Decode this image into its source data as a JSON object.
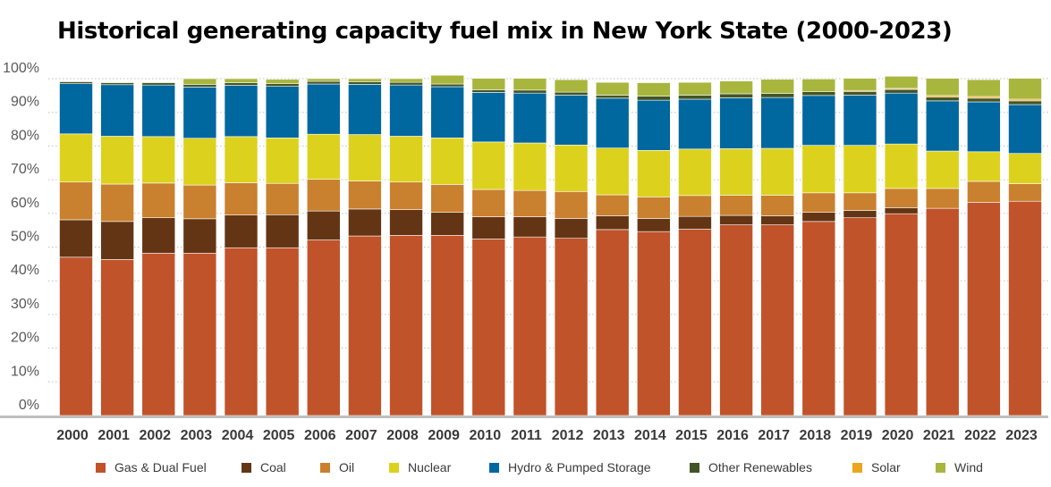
{
  "chart_data": {
    "type": "bar",
    "stacked": true,
    "title": "Historical generating capacity fuel mix in New York State (2000-2023)",
    "xlabel": "",
    "ylabel": "",
    "ylim": [
      0,
      100
    ],
    "y_tick_labels": [
      "0%",
      "10%",
      "20%",
      "30%",
      "40%",
      "50%",
      "60%",
      "70%",
      "80%",
      "90%",
      "100%"
    ],
    "grid": true,
    "legend_position": "bottom",
    "categories": [
      "2000",
      "2001",
      "2002",
      "2003",
      "2004",
      "2005",
      "2006",
      "2007",
      "2008",
      "2009",
      "2010",
      "2011",
      "2012",
      "2013",
      "2014",
      "2015",
      "2016",
      "2017",
      "2018",
      "2019",
      "2020",
      "2021",
      "2022",
      "2023"
    ],
    "series": [
      {
        "name": "Gas & Dual Fuel",
        "color": "#c0532a",
        "values": [
          47,
          46.3,
          48.2,
          48.2,
          49.8,
          49.8,
          52.1,
          53.3,
          53.5,
          53.5,
          52.4,
          53,
          52.6,
          55.2,
          54.6,
          55.3,
          56.6,
          56.6,
          57.6,
          58.7,
          59.9,
          61.5,
          63.3,
          63.6
        ]
      },
      {
        "name": "Coal",
        "color": "#643514",
        "values": [
          11.1,
          11.3,
          10.5,
          10.2,
          9.7,
          9.8,
          8.6,
          8,
          7.6,
          6.8,
          6.6,
          6,
          5.9,
          4.1,
          3.9,
          3.8,
          2.8,
          2.7,
          2.7,
          2.2,
          1.8,
          0,
          0,
          0
        ]
      },
      {
        "name": "Oil",
        "color": "#c9802f",
        "values": [
          11.2,
          11.1,
          10.3,
          10,
          9.6,
          9.3,
          9.4,
          8.3,
          8.2,
          8.3,
          8.1,
          7.8,
          8,
          6.2,
          6.4,
          6.2,
          6,
          6.1,
          5.8,
          5.2,
          5.7,
          5.9,
          6.2,
          5.2
        ]
      },
      {
        "name": "Nuclear",
        "color": "#dcd21e",
        "values": [
          14.3,
          14.2,
          13.8,
          13.9,
          13.7,
          13.5,
          13.4,
          13.8,
          13.6,
          13.8,
          14.1,
          14.1,
          13.8,
          13.9,
          13.8,
          13.8,
          13.8,
          13.9,
          14.1,
          14.1,
          13.2,
          11.1,
          8.8,
          9
        ]
      },
      {
        "name": "Hydro & Pumped Storage",
        "color": "#00679f",
        "values": [
          14.9,
          15.3,
          15.3,
          15.2,
          15.2,
          15.3,
          14.9,
          14.9,
          15.2,
          15.2,
          14.7,
          14.8,
          14.8,
          14.8,
          14.9,
          14.8,
          15.1,
          15.1,
          14.8,
          14.9,
          15.1,
          14.9,
          14.8,
          14.5
        ]
      },
      {
        "name": "Other Renewables",
        "color": "#435527",
        "values": [
          0.6,
          0.6,
          0.7,
          0.8,
          0.8,
          0.8,
          0.8,
          0.8,
          0.8,
          0.8,
          0.8,
          0.9,
          0.9,
          0.9,
          1.2,
          1.2,
          1.2,
          1.2,
          1.1,
          1.1,
          1.1,
          1.1,
          1.1,
          1.1
        ]
      },
      {
        "name": "Solar",
        "color": "#eba51f",
        "values": [
          0,
          0,
          0,
          0,
          0,
          0,
          0,
          0,
          0,
          0,
          0,
          0,
          0,
          0,
          0,
          0,
          0,
          0,
          0,
          0.3,
          0.3,
          0.5,
          0.5,
          0.5
        ]
      },
      {
        "name": "Wind",
        "color": "#a8b63e",
        "values": [
          0.1,
          0.2,
          0.2,
          1.7,
          1.2,
          1.3,
          0.8,
          0.9,
          1.1,
          2.6,
          3.4,
          3.5,
          3.7,
          3.8,
          4,
          3.8,
          3.8,
          4.2,
          3.8,
          3.6,
          3.6,
          5.1,
          5,
          6.2
        ]
      }
    ]
  }
}
